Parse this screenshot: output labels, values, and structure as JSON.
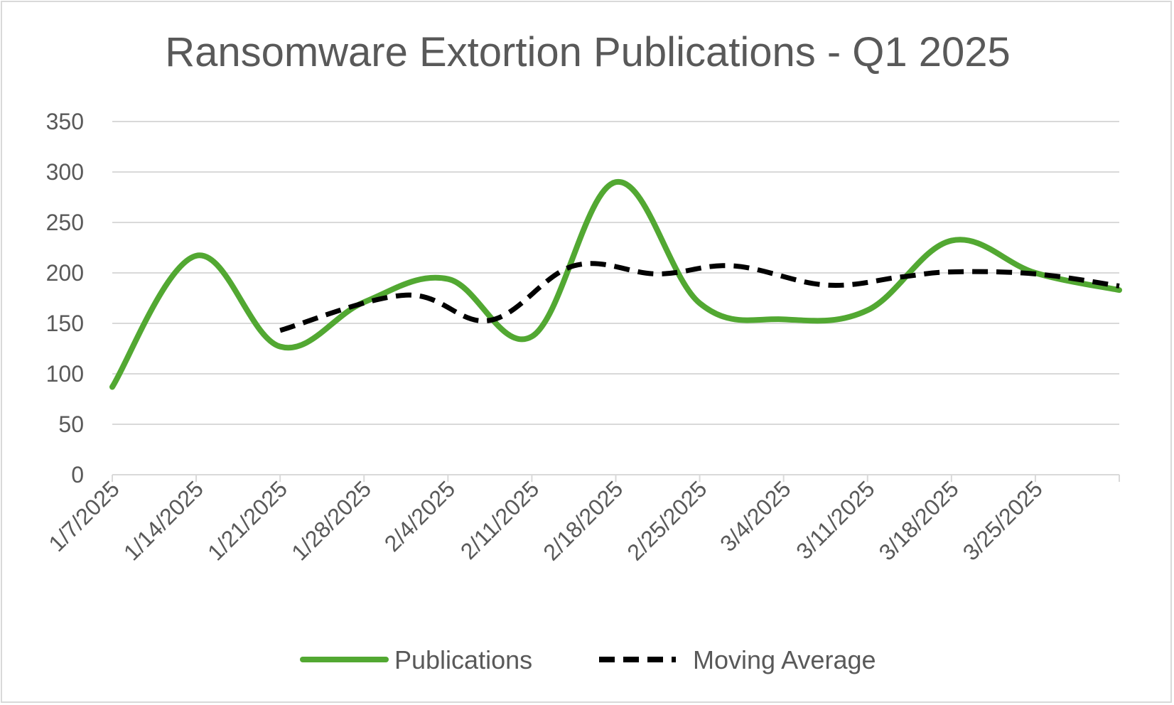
{
  "chart_data": {
    "type": "line",
    "title": "Ransomware Extortion Publications - Q1 2025",
    "xlabel": "",
    "ylabel": "",
    "ylim": [
      0,
      350
    ],
    "yticks": [
      "0",
      "50",
      "100",
      "150",
      "200",
      "250",
      "300",
      "350"
    ],
    "categories": [
      "1/7/2025",
      "1/14/2025",
      "1/21/2025",
      "1/28/2025",
      "2/4/2025",
      "2/11/2025",
      "2/18/2025",
      "2/25/2025",
      "3/4/2025",
      "3/11/2025",
      "3/18/2025",
      "3/25/2025"
    ],
    "grid": true,
    "legend_position": "bottom",
    "series": [
      {
        "name": "Publications",
        "color": "#52a832",
        "style": "solid",
        "x": [
          0,
          1,
          2,
          3,
          4,
          5,
          6,
          7,
          8,
          9,
          10,
          11,
          12
        ],
        "values": [
          87,
          217,
          127,
          171,
          194,
          137,
          290,
          170,
          154,
          163,
          232,
          200,
          183
        ]
      },
      {
        "name": "Moving Average",
        "color": "#000000",
        "style": "dashed",
        "x": [
          2,
          3.5,
          4.5,
          5.5,
          6.5,
          7.4,
          8.5,
          9.4,
          10,
          11,
          12
        ],
        "values": [
          143,
          178,
          153,
          207,
          199,
          207,
          188,
          196,
          201,
          199,
          187
        ]
      }
    ]
  }
}
